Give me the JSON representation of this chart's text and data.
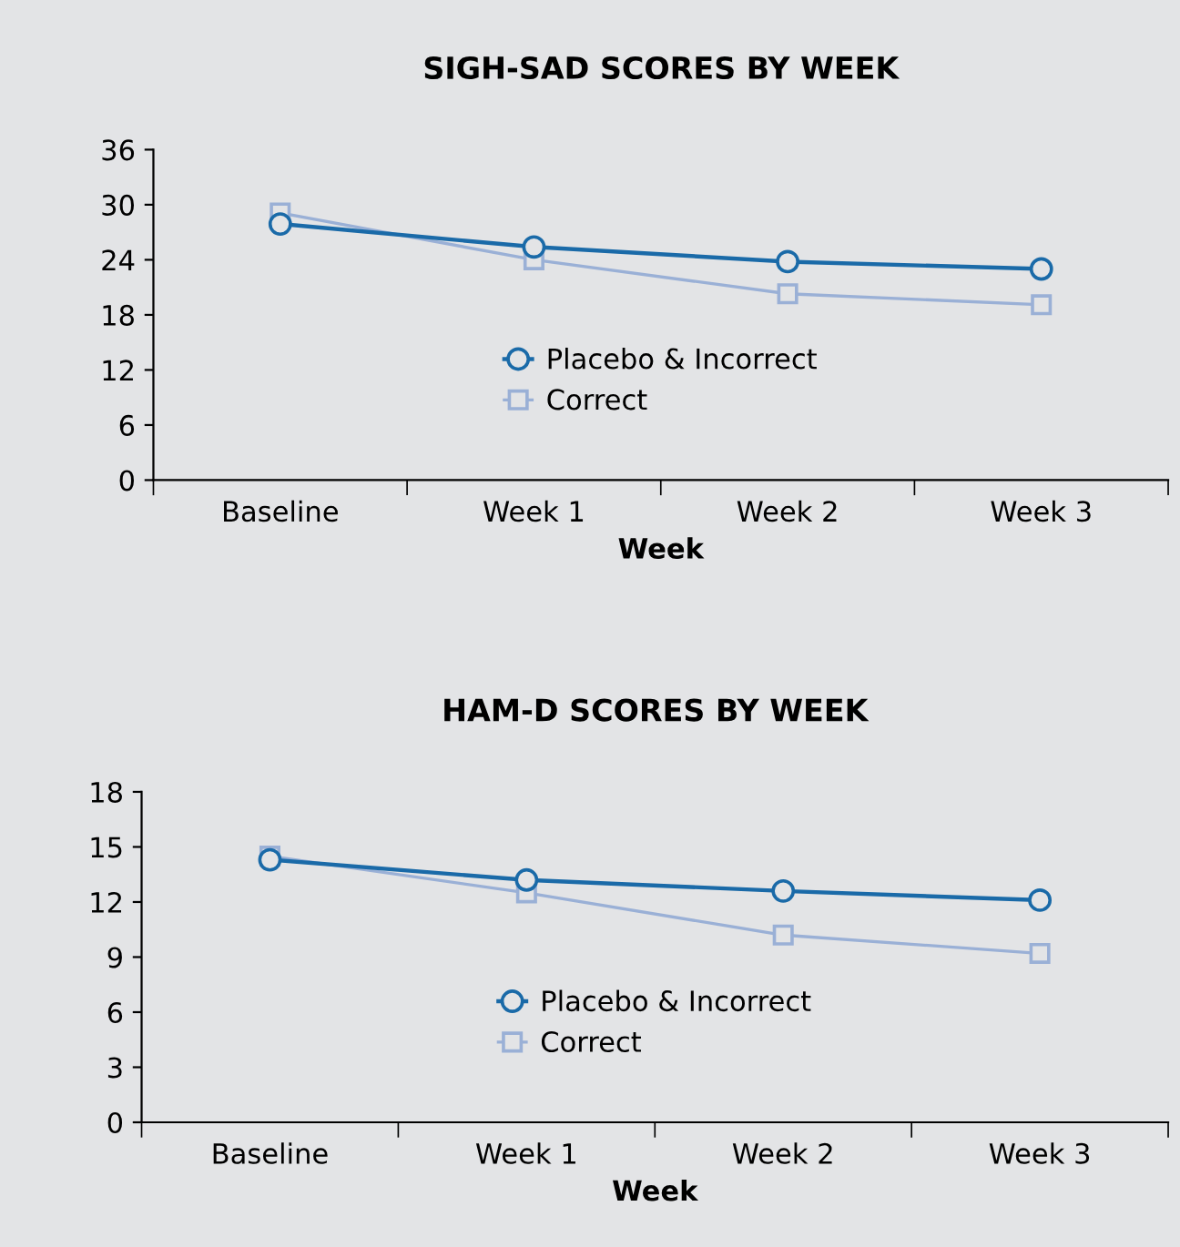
{
  "chart_data": [
    {
      "type": "line",
      "title": "SIGH-SAD SCORES BY WEEK",
      "xlabel": "Week",
      "categories": [
        "Baseline",
        "Week 1",
        "Week 2",
        "Week 3"
      ],
      "ylim": [
        0,
        36
      ],
      "yticks": [
        0,
        6,
        12,
        18,
        24,
        30,
        36
      ],
      "legend": "bottom",
      "grid": false,
      "series": [
        {
          "name": "Placebo & Incorrect",
          "color": "#1a6aa8",
          "marker": "circle",
          "values": [
            27.9,
            25.4,
            23.8,
            23.0
          ]
        },
        {
          "name": "Correct",
          "color": "#9ab0d6",
          "marker": "square",
          "values": [
            29.1,
            24.0,
            20.3,
            19.1
          ]
        }
      ]
    },
    {
      "type": "line",
      "title": "HAM-D SCORES BY WEEK",
      "xlabel": "Week",
      "categories": [
        "Baseline",
        "Week 1",
        "Week 2",
        "Week 3"
      ],
      "ylim": [
        0,
        18
      ],
      "yticks": [
        0,
        3,
        6,
        9,
        12,
        15,
        18
      ],
      "legend": "bottom",
      "grid": false,
      "series": [
        {
          "name": "Placebo & Incorrect",
          "color": "#1a6aa8",
          "marker": "circle",
          "values": [
            14.3,
            13.2,
            12.6,
            12.1
          ]
        },
        {
          "name": "Correct",
          "color": "#9ab0d6",
          "marker": "square",
          "values": [
            14.5,
            12.5,
            10.2,
            9.2
          ]
        }
      ]
    }
  ]
}
